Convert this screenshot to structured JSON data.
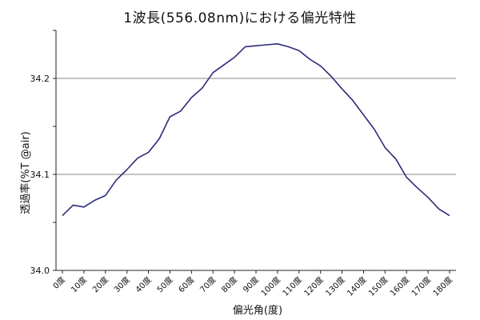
{
  "chart_data": {
    "type": "line",
    "title": "1波長(556.08nm)における偏光特性",
    "xlabel": "偏光角(度)",
    "ylabel": "透過率(%T @air)",
    "ylim": [
      34.0,
      34.25
    ],
    "yticks": [
      34.0,
      34.1,
      34.2
    ],
    "ytick_labels": [
      "34.0",
      "34.1",
      "34.2"
    ],
    "grid": true,
    "legend": "none",
    "line_color": "#2b2b7a",
    "xlim": [
      0,
      180
    ],
    "xticks": [
      0,
      10,
      20,
      30,
      40,
      50,
      60,
      70,
      80,
      90,
      100,
      110,
      120,
      130,
      140,
      150,
      160,
      170,
      180
    ],
    "xtick_labels": [
      "0度",
      "10度",
      "20度",
      "30度",
      "40度",
      "50度",
      "60度",
      "70度",
      "80度",
      "90度",
      "100度",
      "110度",
      "120度",
      "130度",
      "140度",
      "150度",
      "160度",
      "170度",
      "180度"
    ],
    "series": [
      {
        "x": [
          0,
          5,
          10,
          15,
          20,
          25,
          30,
          35,
          40,
          45,
          50,
          55,
          60,
          65,
          70,
          75,
          80,
          85,
          90,
          95,
          100,
          105,
          110,
          115,
          120,
          125,
          130,
          135,
          140,
          145,
          150,
          155,
          160,
          165,
          170,
          175,
          180
        ],
        "values": [
          34.057,
          34.068,
          34.066,
          34.073,
          34.078,
          34.094,
          34.105,
          34.117,
          34.123,
          34.137,
          34.16,
          34.166,
          34.18,
          34.19,
          34.206,
          34.214,
          34.222,
          34.233,
          34.234,
          34.235,
          34.236,
          34.233,
          34.229,
          34.22,
          34.213,
          34.202,
          34.189,
          34.177,
          34.162,
          34.147,
          34.128,
          34.116,
          34.097,
          34.086,
          34.076,
          34.064,
          34.057
        ]
      }
    ]
  }
}
